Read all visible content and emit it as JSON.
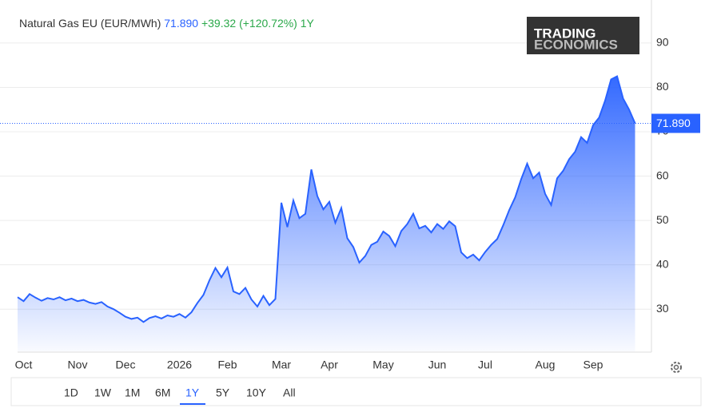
{
  "chart_data": {
    "type": "area",
    "title": "Natural Gas EU (EUR/MWh)",
    "last_value": {
      "value": 71.89,
      "label": "71.890"
    },
    "change": "+39.32 (+120.72%)",
    "period": "1Y",
    "logo": [
      "TRADING",
      "ECONOMICS"
    ],
    "color": "#2962ff",
    "grid": true,
    "ylim": [
      20.5,
      97
    ],
    "yticks": [
      30,
      40,
      50,
      60,
      70,
      80,
      90
    ],
    "categories": [
      null,
      "Oct",
      null,
      null,
      null,
      null,
      null,
      null,
      null,
      null,
      "Nov",
      null,
      null,
      null,
      null,
      null,
      null,
      null,
      "Dec",
      null,
      null,
      null,
      null,
      null,
      null,
      null,
      null,
      "2026",
      null,
      null,
      null,
      null,
      null,
      null,
      null,
      "Feb",
      null,
      null,
      null,
      null,
      null,
      null,
      null,
      null,
      "Mar",
      null,
      null,
      null,
      null,
      null,
      null,
      null,
      "Apr",
      null,
      null,
      null,
      null,
      null,
      null,
      null,
      null,
      "May",
      null,
      null,
      null,
      null,
      null,
      null,
      null,
      null,
      "Jun",
      null,
      null,
      null,
      null,
      null,
      null,
      null,
      "Jul",
      null,
      null,
      null,
      null,
      null,
      null,
      null,
      null,
      null,
      "Aug",
      null,
      null,
      null,
      null,
      null,
      null,
      null,
      "Sep",
      null,
      null,
      null,
      null,
      null,
      null,
      null
    ],
    "values": [
      32.7,
      31.8,
      33.4,
      32.6,
      31.9,
      32.5,
      32.2,
      32.7,
      32.0,
      32.4,
      31.8,
      32.1,
      31.5,
      31.2,
      31.6,
      30.6,
      30.0,
      29.2,
      28.3,
      27.8,
      28.1,
      27.1,
      28.0,
      28.4,
      27.9,
      28.6,
      28.3,
      28.9,
      28.1,
      29.3,
      31.4,
      33.2,
      36.5,
      39.3,
      37.2,
      39.4,
      34.0,
      33.4,
      34.8,
      32.2,
      30.6,
      33.0,
      30.9,
      32.3,
      54.0,
      48.5,
      54.5,
      50.5,
      51.5,
      61.5,
      55.5,
      52.5,
      54.2,
      49.5,
      52.8,
      46.0,
      44.0,
      40.5,
      42.0,
      44.5,
      45.2,
      47.5,
      46.5,
      44.2,
      47.6,
      49.2,
      51.5,
      48.2,
      48.8,
      47.3,
      49.2,
      48.1,
      49.8,
      48.7,
      42.8,
      41.5,
      42.3,
      41.0,
      42.9,
      44.5,
      45.8,
      48.9,
      52.3,
      55.2,
      59.3,
      62.8,
      59.5,
      60.8,
      56.0,
      53.5,
      59.5,
      61.2,
      63.8,
      65.5,
      68.8,
      67.5,
      71.5,
      73.2,
      77.0,
      81.8,
      82.5,
      77.5,
      75.0,
      71.89
    ],
    "ranges": [
      "1D",
      "1W",
      "1M",
      "6M",
      "1Y",
      "5Y",
      "10Y",
      "All"
    ],
    "selected_range": "1Y"
  }
}
